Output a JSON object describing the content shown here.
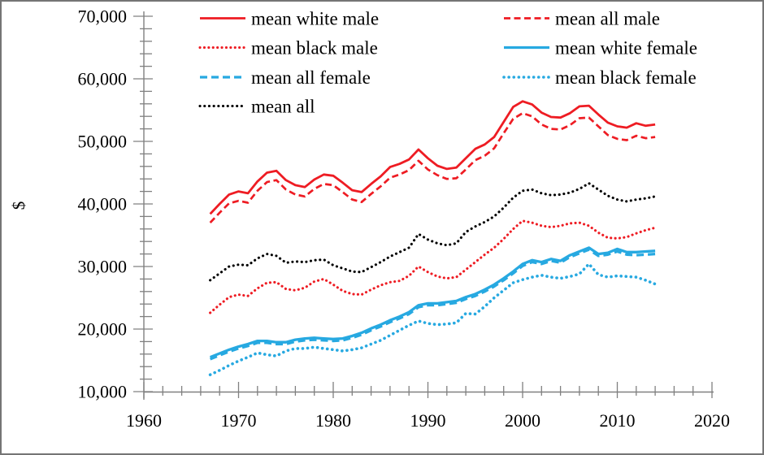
{
  "window": {
    "background": "#ffffff",
    "border_color": "#757575"
  },
  "colors": {
    "male_red": "#ee1c23",
    "female_blue": "#27a9e1",
    "all_black": "#000000",
    "axis_gray": "#808080",
    "text_black": "#000000"
  },
  "chart_data": {
    "type": "line",
    "title": "",
    "xlabel": "",
    "ylabel": "$",
    "grid": false,
    "legend_position": "top-two-columns",
    "x_axis": {
      "min": 1960,
      "max": 2020,
      "major_tick_step": 10,
      "minor_tick_step": 2,
      "tick_labels": [
        "1960",
        "1970",
        "1980",
        "1990",
        "2000",
        "2010",
        "2020"
      ]
    },
    "y_axis": {
      "min": 10000,
      "max": 70000,
      "major_tick_step": 10000,
      "minor_tick_step": 2000,
      "tick_labels": [
        "10,000",
        "20,000",
        "30,000",
        "40,000",
        "50,000",
        "60,000",
        "70,000"
      ]
    },
    "years": [
      1967,
      1968,
      1969,
      1970,
      1971,
      1972,
      1973,
      1974,
      1975,
      1976,
      1977,
      1978,
      1979,
      1980,
      1981,
      1982,
      1983,
      1984,
      1985,
      1986,
      1987,
      1988,
      1989,
      1990,
      1991,
      1992,
      1993,
      1994,
      1995,
      1996,
      1997,
      1998,
      1999,
      2000,
      2001,
      2002,
      2003,
      2004,
      2005,
      2006,
      2007,
      2008,
      2009,
      2010,
      2011,
      2012,
      2013,
      2014
    ],
    "series": [
      {
        "name": "mean white male",
        "group": "male",
        "color": "#ee1c23",
        "style": "solid",
        "values": [
          38400,
          40000,
          41500,
          42000,
          41700,
          43600,
          45000,
          45300,
          43800,
          43000,
          42700,
          43900,
          44700,
          44500,
          43400,
          42200,
          41900,
          43200,
          44400,
          45900,
          46400,
          47100,
          48700,
          47300,
          46100,
          45600,
          45800,
          47300,
          48800,
          49500,
          50700,
          53100,
          55500,
          56400,
          55900,
          54600,
          53900,
          53800,
          54500,
          55600,
          55700,
          54300,
          53000,
          52400,
          52200,
          52900,
          52500,
          52700
        ]
      },
      {
        "name": "mean all male",
        "group": "male",
        "color": "#ee1c23",
        "style": "dashed",
        "values": [
          37000,
          38600,
          40100,
          40500,
          40200,
          42100,
          43500,
          43800,
          42300,
          41500,
          41200,
          42400,
          43200,
          43000,
          41900,
          40700,
          40300,
          41600,
          42800,
          44200,
          44700,
          45400,
          46900,
          45500,
          44600,
          44000,
          44100,
          45500,
          47000,
          47700,
          48900,
          51300,
          53600,
          54500,
          54000,
          52700,
          52000,
          51900,
          52600,
          53700,
          53800,
          52400,
          51000,
          50400,
          50200,
          50900,
          50500,
          50700
        ]
      },
      {
        "name": "mean black male",
        "group": "male",
        "color": "#ee1c23",
        "style": "dotted",
        "values": [
          22600,
          23900,
          25100,
          25500,
          25300,
          26500,
          27400,
          27500,
          26400,
          26200,
          26600,
          27600,
          28000,
          27100,
          26100,
          25600,
          25500,
          26300,
          27000,
          27500,
          27700,
          28500,
          30000,
          29100,
          28400,
          28100,
          28300,
          29500,
          30700,
          31900,
          33000,
          34400,
          36000,
          37300,
          37000,
          36500,
          36300,
          36500,
          36900,
          37000,
          36500,
          35400,
          34600,
          34500,
          34700,
          35300,
          35800,
          36200
        ]
      },
      {
        "name": "mean white female",
        "group": "female",
        "color": "#27a9e1",
        "style": "solid",
        "values": [
          15500,
          16100,
          16700,
          17200,
          17600,
          18100,
          18100,
          17900,
          17900,
          18300,
          18500,
          18600,
          18500,
          18400,
          18500,
          18900,
          19400,
          20100,
          20700,
          21400,
          22000,
          22700,
          23800,
          24100,
          24100,
          24300,
          24500,
          25100,
          25600,
          26300,
          27100,
          28100,
          29200,
          30400,
          31000,
          30700,
          31200,
          30900,
          31800,
          32400,
          33000,
          32000,
          32200,
          32800,
          32300,
          32300,
          32400,
          32500
        ]
      },
      {
        "name": "mean all female",
        "group": "female",
        "color": "#27a9e1",
        "style": "dashed",
        "values": [
          15200,
          15800,
          16400,
          16900,
          17300,
          17800,
          17800,
          17600,
          17600,
          18000,
          18200,
          18300,
          18200,
          18100,
          18200,
          18600,
          19100,
          19800,
          20400,
          21100,
          21700,
          22400,
          23500,
          23800,
          23800,
          24000,
          24200,
          24800,
          25300,
          26000,
          26800,
          27800,
          28900,
          30100,
          30700,
          30400,
          30900,
          30600,
          31500,
          32100,
          32700,
          31700,
          31900,
          32400,
          31900,
          31800,
          31900,
          32000
        ]
      },
      {
        "name": "mean black female",
        "group": "female",
        "color": "#27a9e1",
        "style": "dotted",
        "values": [
          12700,
          13400,
          14200,
          14900,
          15500,
          16200,
          15900,
          15700,
          16500,
          16900,
          16900,
          17100,
          16900,
          16700,
          16500,
          16700,
          17000,
          17600,
          18200,
          19000,
          19800,
          20600,
          21300,
          20900,
          20700,
          20800,
          21000,
          22500,
          22400,
          23600,
          25000,
          26200,
          27400,
          27900,
          28300,
          28600,
          28300,
          28100,
          28400,
          28800,
          30400,
          28700,
          28300,
          28500,
          28400,
          28300,
          27800,
          27200
        ]
      },
      {
        "name": "mean all",
        "group": "all",
        "color": "#000000",
        "style": "dotted",
        "values": [
          27800,
          28900,
          30000,
          30300,
          30200,
          31300,
          32000,
          31700,
          30600,
          30800,
          30700,
          31000,
          31100,
          30200,
          29700,
          29200,
          29100,
          29900,
          30700,
          31600,
          32300,
          33000,
          35200,
          34300,
          33700,
          33400,
          33700,
          35500,
          36400,
          37100,
          38000,
          39400,
          41000,
          42100,
          42300,
          41700,
          41400,
          41500,
          41800,
          42400,
          43300,
          42300,
          41300,
          40700,
          40400,
          40700,
          40900,
          41200
        ]
      }
    ],
    "legend": {
      "columns": [
        [
          0,
          2,
          4,
          6
        ],
        [
          1,
          3,
          5
        ]
      ]
    }
  }
}
